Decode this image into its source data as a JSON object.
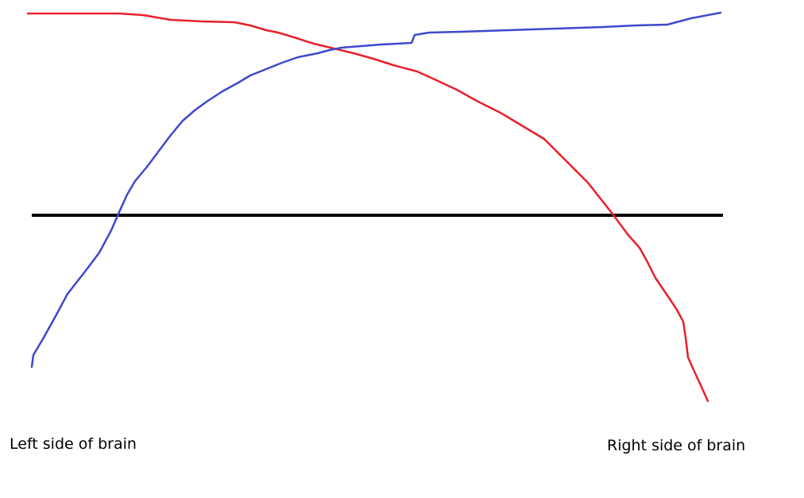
{
  "labels": {
    "left": "Left side of brain",
    "right": "Right side of brain"
  },
  "colors": {
    "background": "#ffffff",
    "baseline": "#000000",
    "red_curve": "#e8202a",
    "blue_curve": "#3f48cc",
    "text": "#000000"
  },
  "curves": [
    {
      "name": "red-curve",
      "color": "red"
    },
    {
      "name": "blue-curve",
      "color": "blue"
    },
    {
      "name": "baseline",
      "color": "black"
    }
  ]
}
